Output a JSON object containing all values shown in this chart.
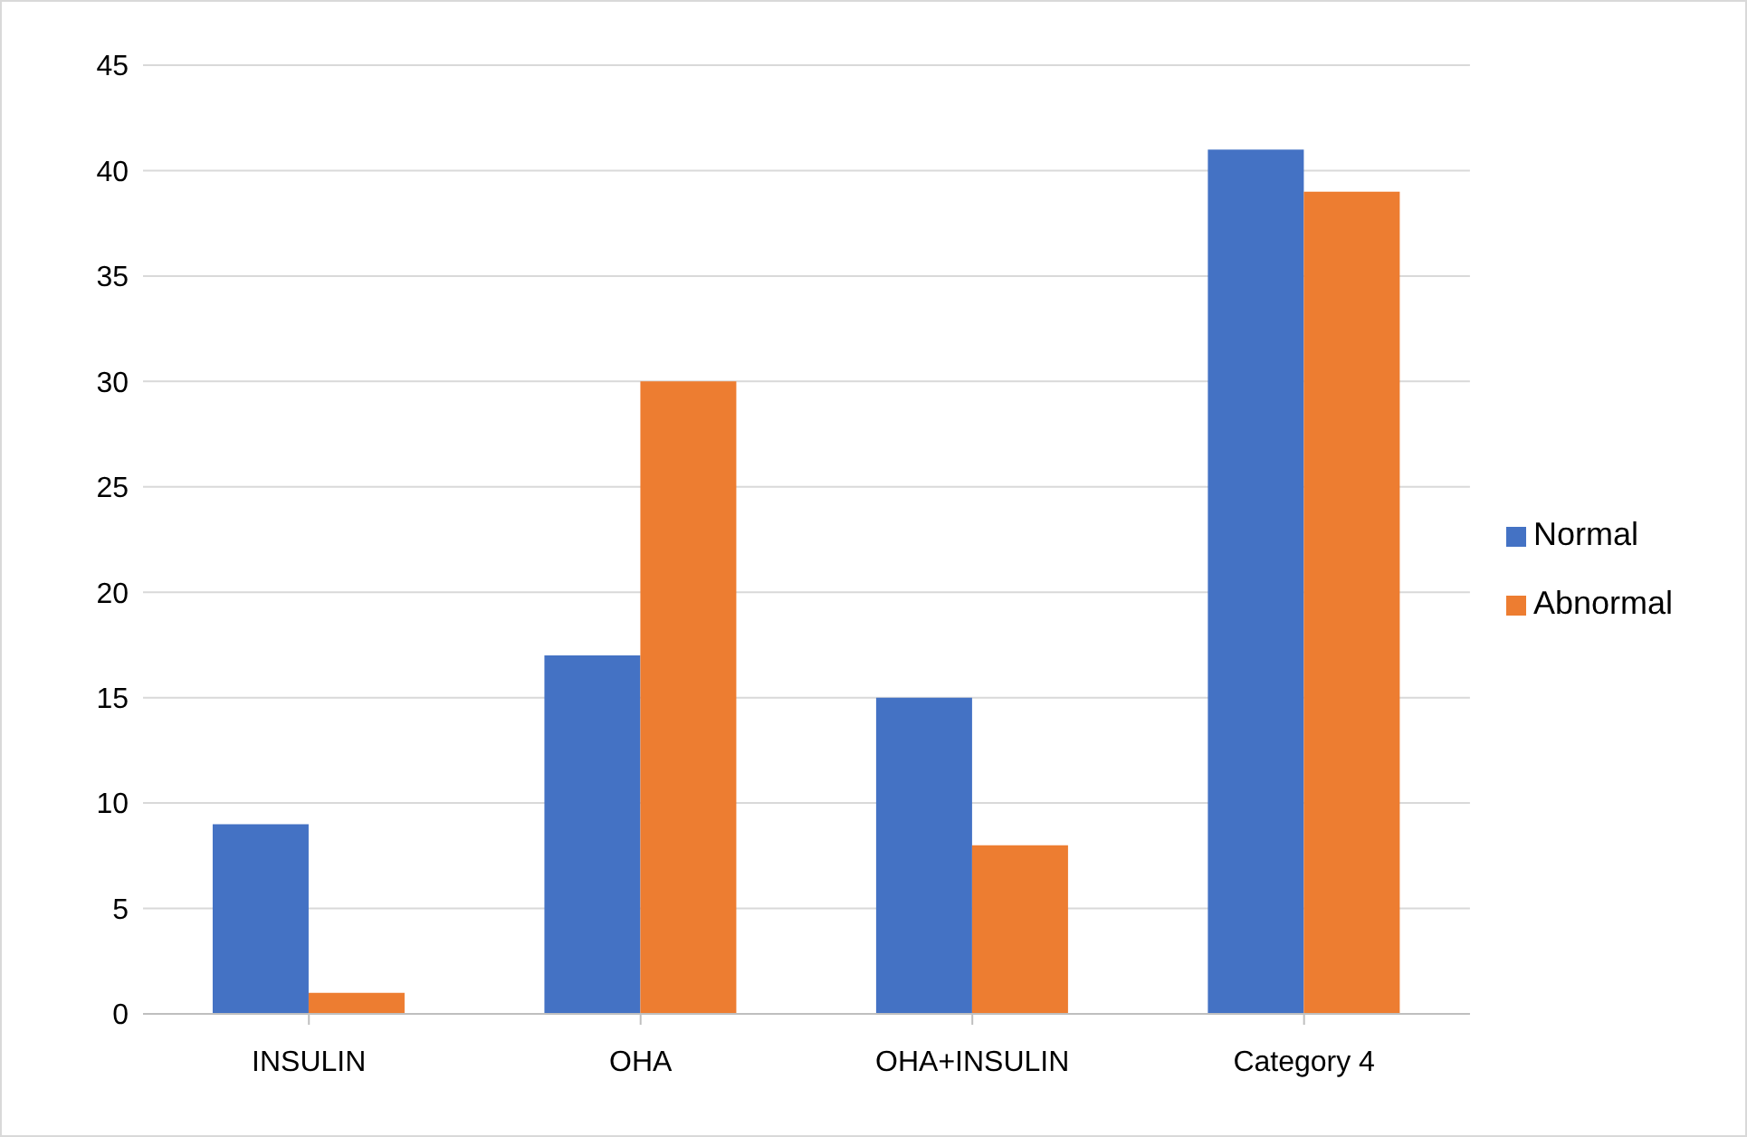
{
  "chart_data": {
    "type": "bar",
    "categories": [
      "INSULIN",
      "OHA",
      "OHA+INSULIN",
      "Category 4"
    ],
    "series": [
      {
        "name": "Normal",
        "color": "#4472c4",
        "values": [
          9,
          17,
          15,
          41
        ]
      },
      {
        "name": "Abnormal",
        "color": "#ed7d31",
        "values": [
          1,
          30,
          8,
          39
        ]
      }
    ],
    "ylim": [
      0,
      45
    ],
    "yticks": [
      0,
      5,
      10,
      15,
      20,
      25,
      30,
      35,
      40,
      45
    ],
    "grid": "y",
    "legend": "right"
  }
}
